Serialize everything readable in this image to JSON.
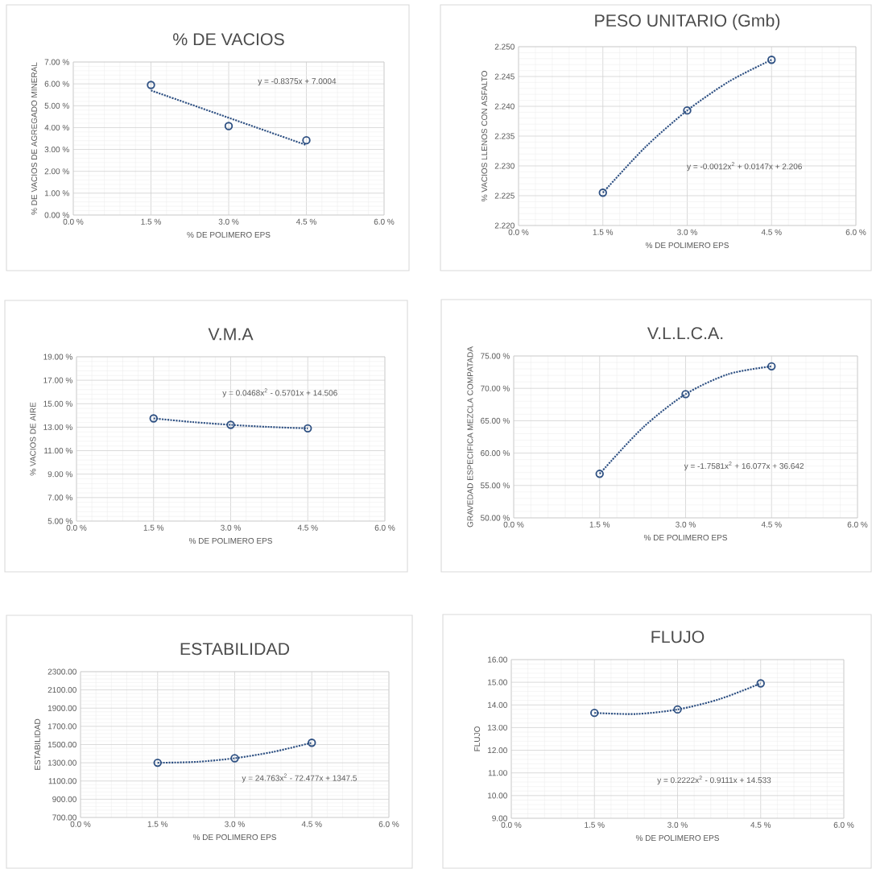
{
  "chart_data": [
    {
      "type": "scatter",
      "title": "% DE VACIOS",
      "xlabel": "% DE POLIMERO  EPS",
      "ylabel": "% DE VACIOS  DE AGREGADO MINERAL",
      "xlim": [
        0,
        6
      ],
      "xticks": [
        {
          "value": 0,
          "label": "0.0 %"
        },
        {
          "value": 1.5,
          "label": "1.5 %"
        },
        {
          "value": 3,
          "label": "3.0 %"
        },
        {
          "value": 4.5,
          "label": "4.5 %"
        },
        {
          "value": 6,
          "label": "6.0 %"
        }
      ],
      "ylim": [
        0,
        7
      ],
      "yticks": [
        {
          "value": 0,
          "label": "0.00 %"
        },
        {
          "value": 1,
          "label": "1.00 %"
        },
        {
          "value": 2,
          "label": "2.00 %"
        },
        {
          "value": 3,
          "label": "3.00 %"
        },
        {
          "value": 4,
          "label": "4.00 %"
        },
        {
          "value": 5,
          "label": "5.00 %"
        },
        {
          "value": 6,
          "label": "6.00 %"
        },
        {
          "value": 7,
          "label": "7.00 %"
        }
      ],
      "grid": true,
      "series": [
        {
          "color": "#2f5183",
          "marker": "circle",
          "x": [
            1.5,
            3,
            4.5
          ],
          "values": [
            5.95,
            4.07,
            3.42
          ]
        },
        {
          "type": "line",
          "color": "#2f5183",
          "line_style": "dotted",
          "x": [
            1.5,
            4.5
          ],
          "values": [
            5.7,
            3.2
          ]
        }
      ],
      "annotations": [
        "y = -0.8375x + 7.0004"
      ]
    },
    {
      "type": "scatter",
      "title": "PESO UNITARIO (Gmb)",
      "xlabel": "% DE POLIMERO  EPS",
      "ylabel": "% VACIOS  LLENOS CON ASFALTO",
      "xlim": [
        0,
        6
      ],
      "xticks": [
        {
          "value": 0,
          "label": "0.0 %"
        },
        {
          "value": 1.5,
          "label": "1.5 %"
        },
        {
          "value": 3,
          "label": "3.0 %"
        },
        {
          "value": 4.5,
          "label": "4.5 %"
        },
        {
          "value": 6,
          "label": "6.0 %"
        }
      ],
      "ylim": [
        2.22,
        2.25
      ],
      "yticks": [
        {
          "value": 2.22,
          "label": "2.220"
        },
        {
          "value": 2.225,
          "label": "2.225"
        },
        {
          "value": 2.23,
          "label": "2.230"
        },
        {
          "value": 2.235,
          "label": "2.235"
        },
        {
          "value": 2.24,
          "label": "2.240"
        },
        {
          "value": 2.245,
          "label": "2.245"
        },
        {
          "value": 2.25,
          "label": "2.250"
        }
      ],
      "grid": true,
      "series": [
        {
          "color": "#2f5183",
          "marker": "circle",
          "x": [
            1.5,
            3,
            4.5
          ],
          "values": [
            2.2255,
            2.2393,
            2.2478
          ]
        },
        {
          "type": "line",
          "color": "#2f5183",
          "line_style": "dotted",
          "x": [
            1.5,
            2.25,
            3,
            3.75,
            4.5
          ],
          "values": [
            2.2255,
            2.2331,
            2.2393,
            2.2442,
            2.2478
          ]
        }
      ],
      "annotations": [
        "y = -0.0012x$^{2}$ + 0.0147x + 2.206"
      ]
    },
    {
      "type": "scatter",
      "title": "V.M.A",
      "xlabel": "% DE POLIMERO  EPS",
      "ylabel": "%  VACIOS  DE AIRE",
      "xlim": [
        0,
        6
      ],
      "xticks": [
        {
          "value": 0,
          "label": "0.0 %"
        },
        {
          "value": 1.5,
          "label": "1.5 %"
        },
        {
          "value": 3,
          "label": "3.0 %"
        },
        {
          "value": 4.5,
          "label": "4.5 %"
        },
        {
          "value": 6,
          "label": "6.0 %"
        }
      ],
      "ylim": [
        5,
        19
      ],
      "yticks": [
        {
          "value": 5,
          "label": "5.00 %"
        },
        {
          "value": 7,
          "label": "7.00 %"
        },
        {
          "value": 9,
          "label": "9.00 %"
        },
        {
          "value": 11,
          "label": "11.00 %"
        },
        {
          "value": 13,
          "label": "13.00 %"
        },
        {
          "value": 15,
          "label": "15.00 %"
        },
        {
          "value": 17,
          "label": "17.00 %"
        },
        {
          "value": 19,
          "label": "19.00 %"
        }
      ],
      "grid": true,
      "series": [
        {
          "color": "#2f5183",
          "marker": "circle",
          "x": [
            1.5,
            3,
            4.5
          ],
          "values": [
            13.75,
            13.2,
            12.9
          ]
        },
        {
          "type": "line",
          "color": "#2f5183",
          "line_style": "dotted",
          "x": [
            1.5,
            2.25,
            3,
            3.75,
            4.5
          ],
          "values": [
            13.75,
            13.44,
            13.2,
            13.02,
            12.9
          ]
        }
      ],
      "annotations": [
        "y = 0.0468x$^{2}$ - 0.5701x + 14.506"
      ]
    },
    {
      "type": "scatter",
      "title": "V.L.L.C.A.",
      "xlabel": "% DE POLIMERO  EPS",
      "ylabel": "GRAVEDAD ESPECIFICA MEZCLA COMPATADA",
      "xlim": [
        0,
        6
      ],
      "xticks": [
        {
          "value": 0,
          "label": "0.0 %"
        },
        {
          "value": 1.5,
          "label": "1.5 %"
        },
        {
          "value": 3,
          "label": "3.0 %"
        },
        {
          "value": 4.5,
          "label": "4.5 %"
        },
        {
          "value": 6,
          "label": "6.0 %"
        }
      ],
      "ylim": [
        50,
        75
      ],
      "yticks": [
        {
          "value": 50,
          "label": "50.00 %"
        },
        {
          "value": 55,
          "label": "55.00 %"
        },
        {
          "value": 60,
          "label": "60.00 %"
        },
        {
          "value": 65,
          "label": "65.00 %"
        },
        {
          "value": 70,
          "label": "70.00 %"
        },
        {
          "value": 75,
          "label": "75.00 %"
        }
      ],
      "grid": true,
      "series": [
        {
          "color": "#2f5183",
          "marker": "circle",
          "x": [
            1.5,
            3,
            4.5
          ],
          "values": [
            56.8,
            69.1,
            73.4
          ]
        },
        {
          "type": "line",
          "color": "#2f5183",
          "line_style": "dotted",
          "x": [
            1.5,
            2.25,
            3,
            3.75,
            4.5
          ],
          "values": [
            56.8,
            63.9,
            69.1,
            72.2,
            73.4
          ]
        }
      ],
      "annotations": [
        "y = -1.7581x$^{2}$ + 16.077x + 36.642"
      ]
    },
    {
      "type": "scatter",
      "title": "ESTABILIDAD",
      "xlabel": "% DE POLIMERO  EPS",
      "ylabel": "ESTABILIDAD",
      "xlim": [
        0,
        6
      ],
      "xticks": [
        {
          "value": 0,
          "label": "0.0 %"
        },
        {
          "value": 1.5,
          "label": "1.5 %"
        },
        {
          "value": 3,
          "label": "3.0 %"
        },
        {
          "value": 4.5,
          "label": "4.5 %"
        },
        {
          "value": 6,
          "label": "6.0 %"
        }
      ],
      "ylim": [
        700,
        2300
      ],
      "yticks": [
        {
          "value": 700,
          "label": "700.00"
        },
        {
          "value": 900,
          "label": "900.00"
        },
        {
          "value": 1100,
          "label": "1100.00"
        },
        {
          "value": 1300,
          "label": "1300.00"
        },
        {
          "value": 1500,
          "label": "1500.00"
        },
        {
          "value": 1700,
          "label": "1700.00"
        },
        {
          "value": 1900,
          "label": "1900.00"
        },
        {
          "value": 2100,
          "label": "2100.00"
        },
        {
          "value": 2300,
          "label": "2300.00"
        }
      ],
      "grid": true,
      "series": [
        {
          "color": "#2f5183",
          "marker": "circle",
          "x": [
            1.5,
            3,
            4.5
          ],
          "values": [
            1300,
            1350,
            1520
          ]
        },
        {
          "type": "line",
          "color": "#2f5183",
          "line_style": "dotted",
          "x": [
            1.5,
            2.25,
            3,
            3.75,
            4.5
          ],
          "values": [
            1300,
            1310,
            1350,
            1420,
            1520
          ]
        }
      ],
      "annotations": [
        "y = 24.763x$^{2}$ - 72.477x + 1347.5"
      ]
    },
    {
      "type": "scatter",
      "title": "FLUJO",
      "xlabel": "% DE POLIMERO  EPS",
      "ylabel": "FLUJO",
      "xlim": [
        0,
        6
      ],
      "xticks": [
        {
          "value": 0,
          "label": "0.0 %"
        },
        {
          "value": 1.5,
          "label": "1.5 %"
        },
        {
          "value": 3,
          "label": "3.0 %"
        },
        {
          "value": 4.5,
          "label": "4.5 %"
        },
        {
          "value": 6,
          "label": "6.0 %"
        }
      ],
      "ylim": [
        9,
        16
      ],
      "yticks": [
        {
          "value": 9,
          "label": "9.00"
        },
        {
          "value": 10,
          "label": "10.00"
        },
        {
          "value": 11,
          "label": "11.00"
        },
        {
          "value": 12,
          "label": "12.00"
        },
        {
          "value": 13,
          "label": "13.00"
        },
        {
          "value": 14,
          "label": "14.00"
        },
        {
          "value": 15,
          "label": "15.00"
        },
        {
          "value": 16,
          "label": "16.00"
        }
      ],
      "grid": true,
      "series": [
        {
          "color": "#2f5183",
          "marker": "circle",
          "x": [
            1.5,
            3,
            4.5
          ],
          "values": [
            13.65,
            13.8,
            14.95
          ]
        },
        {
          "type": "line",
          "color": "#2f5183",
          "line_style": "dotted",
          "x": [
            1.5,
            2.25,
            3,
            3.75,
            4.5
          ],
          "values": [
            13.65,
            13.6,
            13.8,
            14.25,
            14.95
          ]
        }
      ],
      "annotations": [
        "y = 0.2222x$^{2}$ - 0.9111x + 14.533"
      ]
    }
  ]
}
